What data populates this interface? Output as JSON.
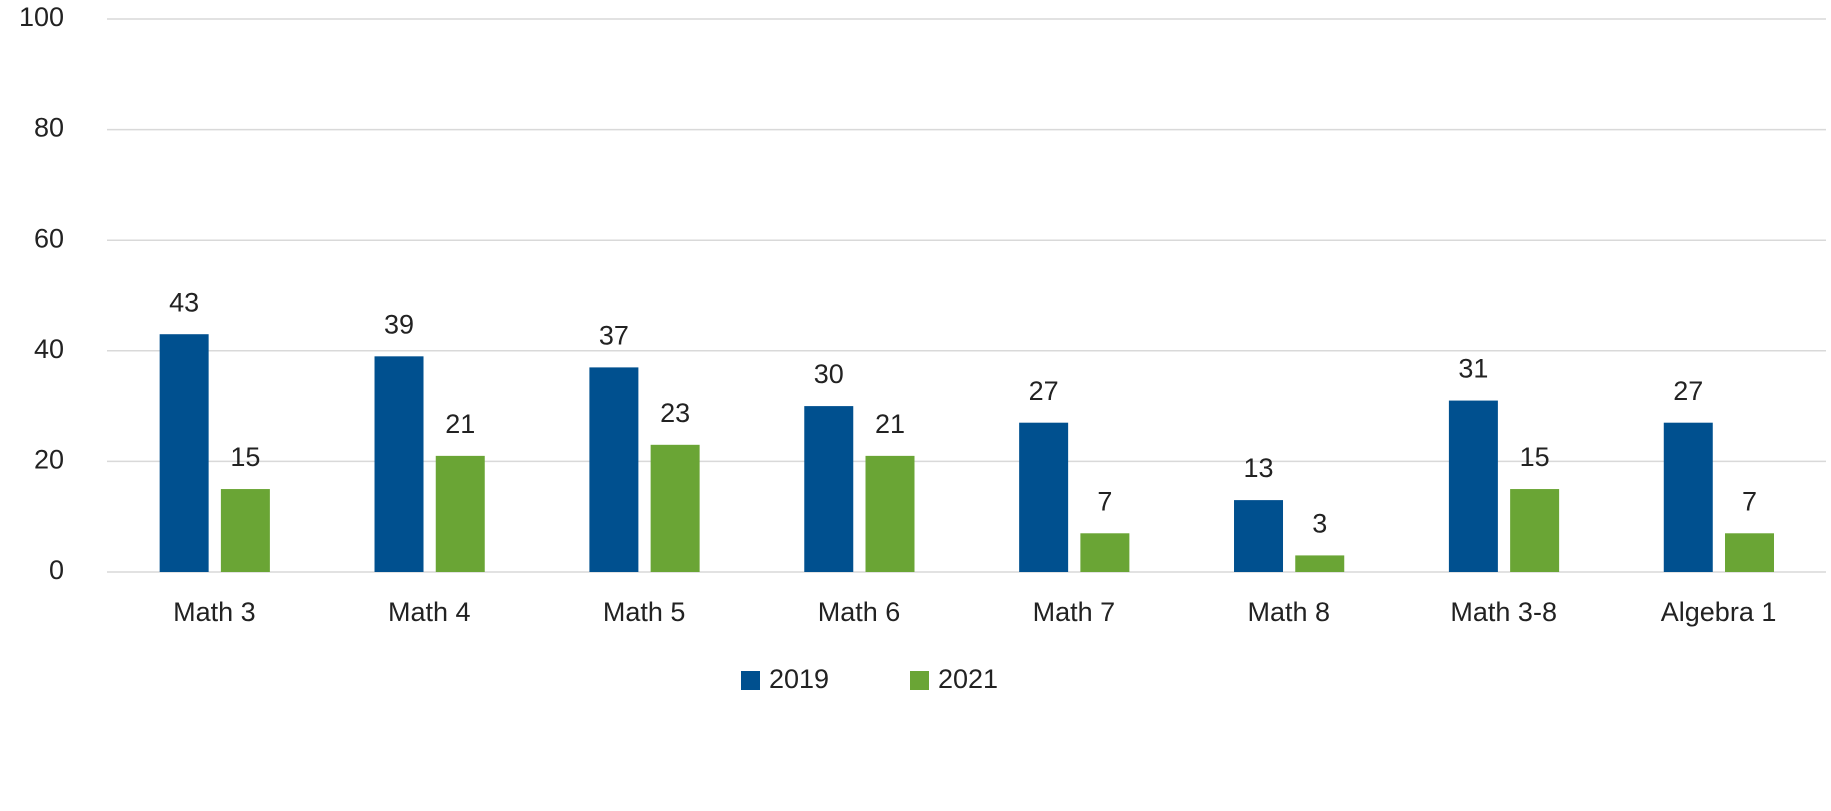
{
  "chart_data": {
    "type": "bar",
    "categories": [
      "Math 3",
      "Math 4",
      "Math 5",
      "Math 6",
      "Math 7",
      "Math 8",
      "Math 3-8",
      "Algebra 1"
    ],
    "series": [
      {
        "name": "2019",
        "color": "#00508f",
        "values": [
          43,
          39,
          37,
          30,
          27,
          13,
          31,
          27
        ]
      },
      {
        "name": "2021",
        "color": "#6aa535",
        "values": [
          15,
          21,
          23,
          21,
          7,
          3,
          15,
          7
        ]
      }
    ],
    "ylim": [
      0,
      100
    ],
    "yticks": [
      0,
      20,
      40,
      60,
      80,
      100
    ],
    "grid": true,
    "legend": "bottom"
  }
}
